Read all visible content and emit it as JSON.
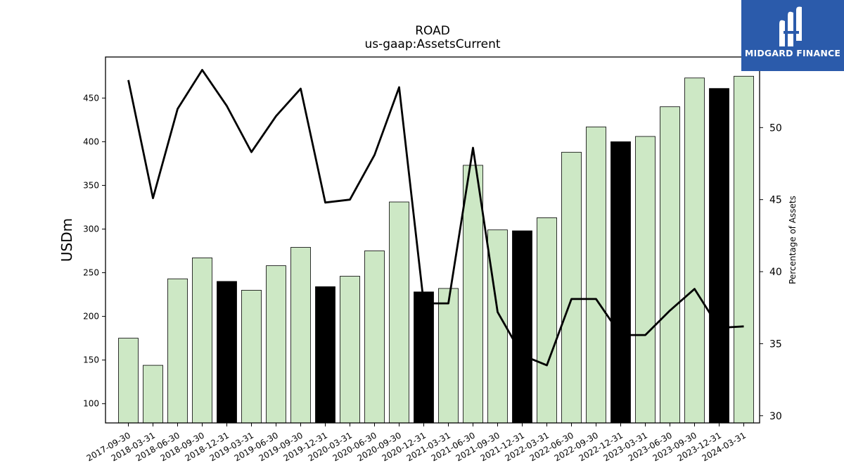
{
  "chart_data": {
    "type": "bar",
    "title": "ROAD",
    "subtitle": "us-gaap:AssetsCurrent",
    "ylabel": "USDm",
    "y2label": "Percentage of Assets",
    "ylim": [
      78,
      497
    ],
    "y2lim": [
      29.5,
      54.9
    ],
    "yticks": [
      100,
      150,
      200,
      250,
      300,
      350,
      400,
      450
    ],
    "y2ticks": [
      30,
      35,
      40,
      45,
      50
    ],
    "categories": [
      "2017-09-30",
      "2018-03-31",
      "2018-06-30",
      "2018-09-30",
      "2018-12-31",
      "2019-03-31",
      "2019-06-30",
      "2019-09-30",
      "2019-12-31",
      "2020-03-31",
      "2020-06-30",
      "2020-09-30",
      "2020-12-31",
      "2021-03-31",
      "2021-06-30",
      "2021-09-30",
      "2021-12-31",
      "2022-03-31",
      "2022-06-30",
      "2022-09-30",
      "2022-12-31",
      "2023-03-31",
      "2023-06-30",
      "2023-09-30",
      "2023-12-31",
      "2024-03-31"
    ],
    "series": [
      {
        "type": "bar",
        "axis": "left",
        "values": [
          175,
          144,
          243,
          267,
          240,
          230,
          258,
          279,
          234,
          246,
          275,
          331,
          228,
          232,
          373,
          299,
          298,
          313,
          388,
          417,
          400,
          406,
          440,
          473,
          461,
          475
        ],
        "highlight": [
          false,
          false,
          false,
          false,
          true,
          false,
          false,
          false,
          true,
          false,
          false,
          false,
          true,
          false,
          false,
          false,
          true,
          false,
          false,
          false,
          true,
          false,
          false,
          false,
          true,
          false
        ]
      },
      {
        "type": "line",
        "axis": "right",
        "values": [
          53.3,
          45.1,
          51.3,
          54.0,
          51.5,
          48.3,
          50.8,
          52.7,
          44.8,
          45.0,
          48.1,
          52.8,
          37.8,
          37.8,
          48.6,
          37.2,
          34.2,
          33.5,
          38.1,
          38.1,
          35.6,
          35.6,
          37.3,
          38.8,
          36.1,
          36.2
        ]
      }
    ],
    "colors": {
      "bar": "#cde8c5",
      "bar_highlight": "#000000",
      "bar_edge": "#000000",
      "line": "#000000"
    },
    "grid": false
  },
  "logo": {
    "text": "MIDGARD FINANCE",
    "icon": "midgard-logo-icon",
    "background": "#2b5bab"
  }
}
